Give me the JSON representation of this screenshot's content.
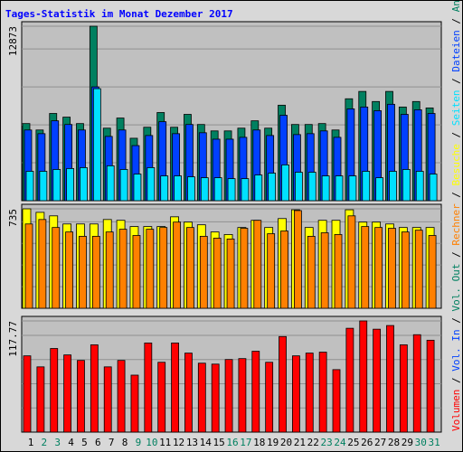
{
  "title": "Tages-Statistik im Monat Dezember 2017",
  "legend_separator": " / ",
  "chart_data": [
    {
      "type": "bar",
      "ylim": [
        0,
        12873
      ],
      "yticks": [
        12873
      ],
      "series": [
        {
          "name": "Anfragen",
          "color": "#008060",
          "values": [
            5691,
            5217,
            6436,
            6165,
            5691,
            12873,
            5352,
            6098,
            4607,
            5420,
            6504,
            5420,
            6369,
            5623,
            5149,
            5149,
            5352,
            5894,
            5352,
            7046,
            5623,
            5623,
            5691,
            5217,
            7520,
            8062,
            7317,
            8062,
            6911,
            7317,
            6843
          ]
        },
        {
          "name": "Dateien",
          "color": "#0040ff",
          "values": [
            5217,
            4946,
            5894,
            5623,
            5217,
            8400,
            4743,
            5217,
            4065,
            4810,
            5827,
            4946,
            5623,
            5014,
            4539,
            4539,
            4675,
            5217,
            4810,
            6301,
            4878,
            4946,
            5149,
            4675,
            6775,
            6911,
            6640,
            7114,
            6369,
            6707,
            6436
          ]
        },
        {
          "name": "Seiten",
          "color": "#00e0ff",
          "values": [
            2168,
            2168,
            2304,
            2371,
            2439,
            8266,
            2575,
            2304,
            1965,
            2439,
            1829,
            1829,
            1762,
            1694,
            1694,
            1626,
            1626,
            1897,
            2033,
            2642,
            2100,
            2100,
            1829,
            1829,
            1829,
            2168,
            1694,
            2168,
            2304,
            2168,
            1965
          ]
        }
      ]
    },
    {
      "type": "bar",
      "ylim": [
        0,
        735
      ],
      "yticks": [
        735
      ],
      "series": [
        {
          "name": "Besuche",
          "color": "#ffff00",
          "values": [
            735,
            709,
            683,
            623,
            623,
            623,
            656,
            650,
            604,
            604,
            604,
            676,
            637,
            617,
            564,
            545,
            597,
            650,
            597,
            663,
            728,
            597,
            650,
            650,
            728,
            637,
            637,
            623,
            597,
            597,
            597
          ]
        },
        {
          "name": "Rechner",
          "color": "#ff8000",
          "values": [
            623,
            656,
            597,
            564,
            532,
            532,
            564,
            584,
            538,
            584,
            597,
            637,
            597,
            532,
            518,
            512,
            591,
            650,
            551,
            571,
            722,
            532,
            558,
            545,
            683,
            604,
            597,
            591,
            564,
            577,
            538
          ]
        }
      ]
    },
    {
      "type": "bar",
      "ylim": [
        0,
        117.77
      ],
      "yticks": [
        117.77
      ],
      "categories": [
        "1",
        "2",
        "3",
        "4",
        "5",
        "6",
        "7",
        "8",
        "9",
        "10",
        "11",
        "12",
        "13",
        "14",
        "15",
        "16",
        "17",
        "18",
        "19",
        "20",
        "21",
        "22",
        "23",
        "24",
        "25",
        "26",
        "27",
        "28",
        "29",
        "30",
        "31"
      ],
      "category_colors": [
        "#000000",
        "#008060",
        "#008060",
        "#000000",
        "#000000",
        "#000000",
        "#000000",
        "#000000",
        "#008060",
        "#008060",
        "#000000",
        "#000000",
        "#000000",
        "#000000",
        "#000000",
        "#008060",
        "#008060",
        "#000000",
        "#000000",
        "#000000",
        "#000000",
        "#000000",
        "#008060",
        "#008060",
        "#000000",
        "#000000",
        "#000000",
        "#000000",
        "#000000",
        "#008060",
        "#008060"
      ],
      "series": [
        {
          "name": "Volumen",
          "color": "#ff0000",
          "values": [
            80.78,
            69.1,
            88.57,
            81.76,
            75.92,
            92.46,
            69.1,
            75.92,
            60.34,
            94.41,
            73.97,
            94.41,
            83.7,
            73.0,
            72.02,
            76.89,
            77.86,
            85.65,
            73.97,
            101.22,
            80.78,
            83.7,
            84.68,
            66.18,
            109.98,
            117.77,
            109.01,
            112.9,
            92.46,
            103.17,
            97.33
          ]
        }
      ],
      "legend_only": [
        {
          "name": "Vol. In",
          "color": "#0040ff"
        },
        {
          "name": "Vol. Out",
          "color": "#008060"
        }
      ]
    }
  ]
}
